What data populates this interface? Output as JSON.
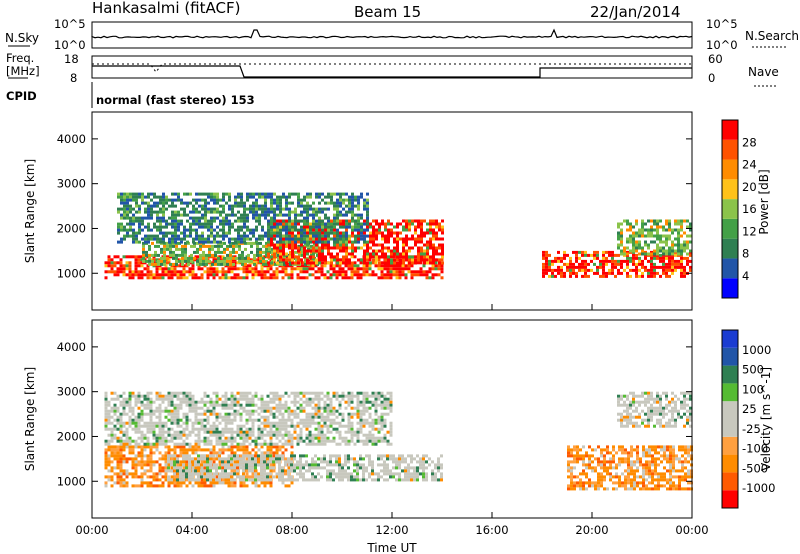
{
  "header": {
    "station": "Hankasalmi (fitACF)",
    "beam": "Beam 15",
    "date": "22/Jan/2014"
  },
  "noise_panel": {
    "left_label": "N.Sky",
    "right_label": "N.Search",
    "left_ticks": [
      "10^5",
      "10^0"
    ],
    "right_ticks": [
      "10^5",
      "10^0"
    ]
  },
  "freq_panel": {
    "left_label_1": "Freq.",
    "left_label_2": "[MHz]",
    "right_label": "Nave",
    "left_ticks": [
      "18",
      "8"
    ],
    "right_ticks": [
      "60",
      "0"
    ]
  },
  "cpid": {
    "label": "CPID",
    "program": "normal (fast stereo) 153"
  },
  "colors": {
    "power_scale": [
      "#0000ff",
      "#2155a8",
      "#2f7f52",
      "#43a047",
      "#8bc34a",
      "#ffc21a",
      "#ff8c00",
      "#ff5200",
      "#ff0000"
    ],
    "velocity_scale": [
      "#ff0000",
      "#ff5a00",
      "#ff8c00",
      "#ffa040",
      "#c8c8be",
      "#c8c8be",
      "#55bb33",
      "#2f7f52",
      "#2155a8",
      "#1a3cd2"
    ]
  },
  "chart_data": [
    {
      "type": "heatmap",
      "name": "power",
      "ylabel": "Slant Range [km]",
      "ylim": [
        180,
        4600
      ],
      "yticks": [
        "1000",
        "2000",
        "3000",
        "4000"
      ],
      "colorbar_label": "Power [dB]",
      "colorbar_ticks": [
        "4",
        "8",
        "12",
        "16",
        "20",
        "24",
        "28"
      ],
      "bands": [
        {
          "t0": 0.5,
          "t1": 14.0,
          "r0": 900,
          "r1": 1400,
          "level": "strong"
        },
        {
          "t0": 2.0,
          "t1": 9.0,
          "r0": 1200,
          "r1": 1700,
          "level": "mid"
        },
        {
          "t0": 7.0,
          "t1": 14.0,
          "r0": 1200,
          "r1": 2200,
          "level": "strong"
        },
        {
          "t0": 1.0,
          "t1": 11.0,
          "r0": 1700,
          "r1": 2800,
          "level": "weak"
        },
        {
          "t0": 18.0,
          "t1": 24.0,
          "r0": 900,
          "r1": 1500,
          "level": "strong"
        },
        {
          "t0": 21.0,
          "t1": 24.0,
          "r0": 1400,
          "r1": 2200,
          "level": "mid"
        }
      ]
    },
    {
      "type": "heatmap",
      "name": "velocity",
      "ylabel": "Slant Range [km]",
      "ylim": [
        180,
        4600
      ],
      "yticks": [
        "1000",
        "2000",
        "3000",
        "4000"
      ],
      "xlabel": "Time UT",
      "xticks": [
        "00:00",
        "04:00",
        "08:00",
        "12:00",
        "16:00",
        "20:00",
        "00:00"
      ],
      "colorbar_label": "Velocity [m s^-1]",
      "colorbar_ticks": [
        "1000",
        "500",
        "100",
        "25",
        "-25",
        "-100",
        "-500",
        "-1000"
      ],
      "bands": [
        {
          "t0": 0.5,
          "t1": 8.0,
          "r0": 900,
          "r1": 1800,
          "level": "away"
        },
        {
          "t0": 3.0,
          "t1": 14.0,
          "r0": 1000,
          "r1": 1600,
          "level": "ground"
        },
        {
          "t0": 0.5,
          "t1": 12.0,
          "r0": 1800,
          "r1": 3000,
          "level": "ground"
        },
        {
          "t0": 19.0,
          "t1": 24.0,
          "r0": 800,
          "r1": 1800,
          "level": "away"
        },
        {
          "t0": 21.0,
          "t1": 24.0,
          "r0": 2200,
          "r1": 3000,
          "level": "ground"
        }
      ]
    }
  ]
}
